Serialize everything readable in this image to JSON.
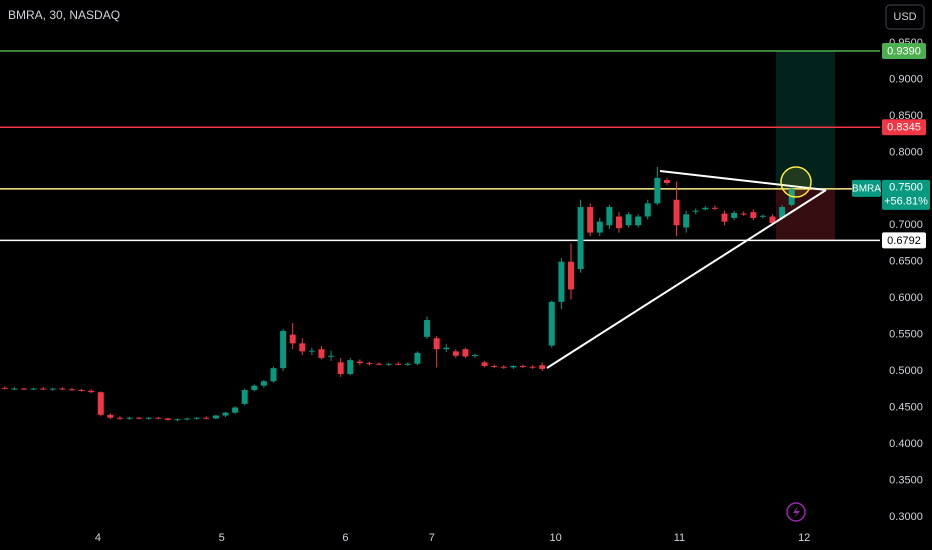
{
  "chart_data": {
    "type": "candlestick",
    "title": "BMRA, 30, NASDAQ",
    "currency": "USD",
    "up_color": "#089981",
    "down_color": "#f23645",
    "grid": false,
    "x": [
      0,
      1,
      2,
      3,
      4,
      5,
      6,
      7,
      8,
      9,
      10,
      11,
      12,
      13,
      14,
      15,
      16,
      17,
      18,
      19,
      20,
      21,
      22,
      23,
      24,
      25,
      26,
      27,
      28,
      29,
      30,
      31,
      32,
      33,
      34,
      35,
      36,
      37,
      38,
      39,
      40,
      41,
      42,
      43,
      44,
      45,
      46,
      47,
      48,
      49,
      50,
      51,
      52,
      53,
      54,
      55,
      56,
      57,
      58,
      59,
      60,
      61,
      62,
      63,
      64,
      65,
      66,
      67,
      68,
      69,
      70,
      71,
      72,
      73,
      74,
      75,
      76,
      77,
      78,
      79,
      80,
      81,
      82
    ],
    "open": [
      0.477,
      0.476,
      0.476,
      0.475,
      0.476,
      0.475,
      0.476,
      0.475,
      0.474,
      0.473,
      0.471,
      0.44,
      0.436,
      0.435,
      0.436,
      0.435,
      0.436,
      0.435,
      0.433,
      0.434,
      0.435,
      0.436,
      0.435,
      0.439,
      0.443,
      0.455,
      0.474,
      0.48,
      0.486,
      0.504,
      0.55,
      0.538,
      0.527,
      0.53,
      0.52,
      0.512,
      0.496,
      0.513,
      0.511,
      0.51,
      0.509,
      0.51,
      0.509,
      0.51,
      0.547,
      0.545,
      0.53,
      0.527,
      0.53,
      0.521,
      0.512,
      0.507,
      0.506,
      0.505,
      0.507,
      0.506,
      0.508,
      0.535,
      0.595,
      0.65,
      0.64,
      0.725,
      0.69,
      0.7,
      0.712,
      0.7,
      0.7,
      0.712,
      0.73,
      0.762,
      0.735,
      0.697,
      0.719,
      0.722,
      0.724,
      0.716,
      0.71,
      0.716,
      0.718,
      0.712,
      0.712,
      0.71,
      0.728
    ],
    "high": [
      0.479,
      0.478,
      0.477,
      0.477,
      0.478,
      0.477,
      0.478,
      0.477,
      0.476,
      0.475,
      0.472,
      0.442,
      0.438,
      0.437,
      0.437,
      0.437,
      0.437,
      0.436,
      0.435,
      0.436,
      0.437,
      0.438,
      0.44,
      0.444,
      0.452,
      0.476,
      0.482,
      0.488,
      0.506,
      0.558,
      0.566,
      0.545,
      0.532,
      0.534,
      0.528,
      0.518,
      0.518,
      0.516,
      0.513,
      0.512,
      0.511,
      0.512,
      0.512,
      0.527,
      0.575,
      0.548,
      0.537,
      0.53,
      0.532,
      0.524,
      0.514,
      0.509,
      0.508,
      0.508,
      0.509,
      0.508,
      0.512,
      0.597,
      0.655,
      0.675,
      0.735,
      0.73,
      0.71,
      0.728,
      0.718,
      0.718,
      0.715,
      0.735,
      0.78,
      0.765,
      0.76,
      0.72,
      0.723,
      0.726,
      0.727,
      0.72,
      0.72,
      0.719,
      0.722,
      0.715,
      0.715,
      0.728,
      0.754
    ],
    "low": [
      0.475,
      0.474,
      0.474,
      0.474,
      0.474,
      0.473,
      0.474,
      0.473,
      0.472,
      0.47,
      0.438,
      0.434,
      0.433,
      0.433,
      0.434,
      0.433,
      0.434,
      0.432,
      0.431,
      0.432,
      0.433,
      0.434,
      0.434,
      0.437,
      0.441,
      0.453,
      0.472,
      0.477,
      0.484,
      0.5,
      0.53,
      0.522,
      0.522,
      0.516,
      0.514,
      0.492,
      0.494,
      0.508,
      0.508,
      0.508,
      0.507,
      0.508,
      0.507,
      0.508,
      0.544,
      0.505,
      0.526,
      0.518,
      0.518,
      0.518,
      0.505,
      0.504,
      0.503,
      0.503,
      0.504,
      0.503,
      0.5,
      0.532,
      0.585,
      0.598,
      0.635,
      0.685,
      0.685,
      0.695,
      0.69,
      0.697,
      0.697,
      0.708,
      0.728,
      0.755,
      0.685,
      0.69,
      0.715,
      0.72,
      0.721,
      0.7,
      0.707,
      0.713,
      0.707,
      0.709,
      0.7,
      0.708,
      0.726
    ],
    "close": [
      0.476,
      0.476,
      0.475,
      0.476,
      0.475,
      0.476,
      0.475,
      0.474,
      0.473,
      0.471,
      0.44,
      0.436,
      0.435,
      0.436,
      0.435,
      0.436,
      0.435,
      0.433,
      0.434,
      0.435,
      0.436,
      0.435,
      0.439,
      0.443,
      0.45,
      0.474,
      0.48,
      0.486,
      0.504,
      0.555,
      0.538,
      0.527,
      0.528,
      0.518,
      0.521,
      0.496,
      0.515,
      0.511,
      0.51,
      0.509,
      0.51,
      0.509,
      0.51,
      0.525,
      0.57,
      0.53,
      0.532,
      0.521,
      0.52,
      0.522,
      0.507,
      0.506,
      0.505,
      0.507,
      0.506,
      0.505,
      0.503,
      0.595,
      0.65,
      0.612,
      0.725,
      0.69,
      0.705,
      0.725,
      0.696,
      0.715,
      0.712,
      0.73,
      0.765,
      0.758,
      0.7,
      0.715,
      0.72,
      0.724,
      0.723,
      0.705,
      0.717,
      0.715,
      0.71,
      0.713,
      0.703,
      0.725,
      0.75
    ],
    "xlim": [
      -0.5,
      91.2
    ],
    "ylim": [
      0.282,
      1.009
    ],
    "xticks": [
      {
        "value": 9.7,
        "label": "4"
      },
      {
        "value": 22.6,
        "label": "5"
      },
      {
        "value": 35.5,
        "label": "6"
      },
      {
        "value": 44.5,
        "label": "7"
      },
      {
        "value": 57.4,
        "label": "10"
      },
      {
        "value": 70.3,
        "label": "11"
      },
      {
        "value": 83.3,
        "label": "12"
      }
    ],
    "yticks": [
      {
        "value": 0.3,
        "label": "0.3000"
      },
      {
        "value": 0.35,
        "label": "0.3500"
      },
      {
        "value": 0.4,
        "label": "0.4000"
      },
      {
        "value": 0.45,
        "label": "0.4500"
      },
      {
        "value": 0.5,
        "label": "0.5000"
      },
      {
        "value": 0.55,
        "label": "0.5500"
      },
      {
        "value": 0.6,
        "label": "0.6000"
      },
      {
        "value": 0.65,
        "label": "0.6500"
      },
      {
        "value": 0.7,
        "label": "0.7000"
      },
      {
        "value": 0.8,
        "label": "0.8000"
      },
      {
        "value": 0.85,
        "label": "0.8500"
      },
      {
        "value": 0.9,
        "label": "0.9000"
      },
      {
        "value": 0.95,
        "label": "0.9500"
      }
    ],
    "levels": [
      {
        "value": 0.939,
        "label": "0.9390",
        "color": "#4caf50"
      },
      {
        "value": 0.8345,
        "label": "0.8345",
        "color": "#f23645"
      },
      {
        "value": 0.75,
        "label": "0.7500",
        "color": "#ffeb7a"
      },
      {
        "value": 0.6792,
        "label": "0.6792",
        "color": "#ffffff"
      }
    ],
    "last_price": {
      "symbol": "BMRA",
      "value": 0.75,
      "label": "0.7500",
      "change": "+56.81%",
      "color": "#089981"
    }
  }
}
